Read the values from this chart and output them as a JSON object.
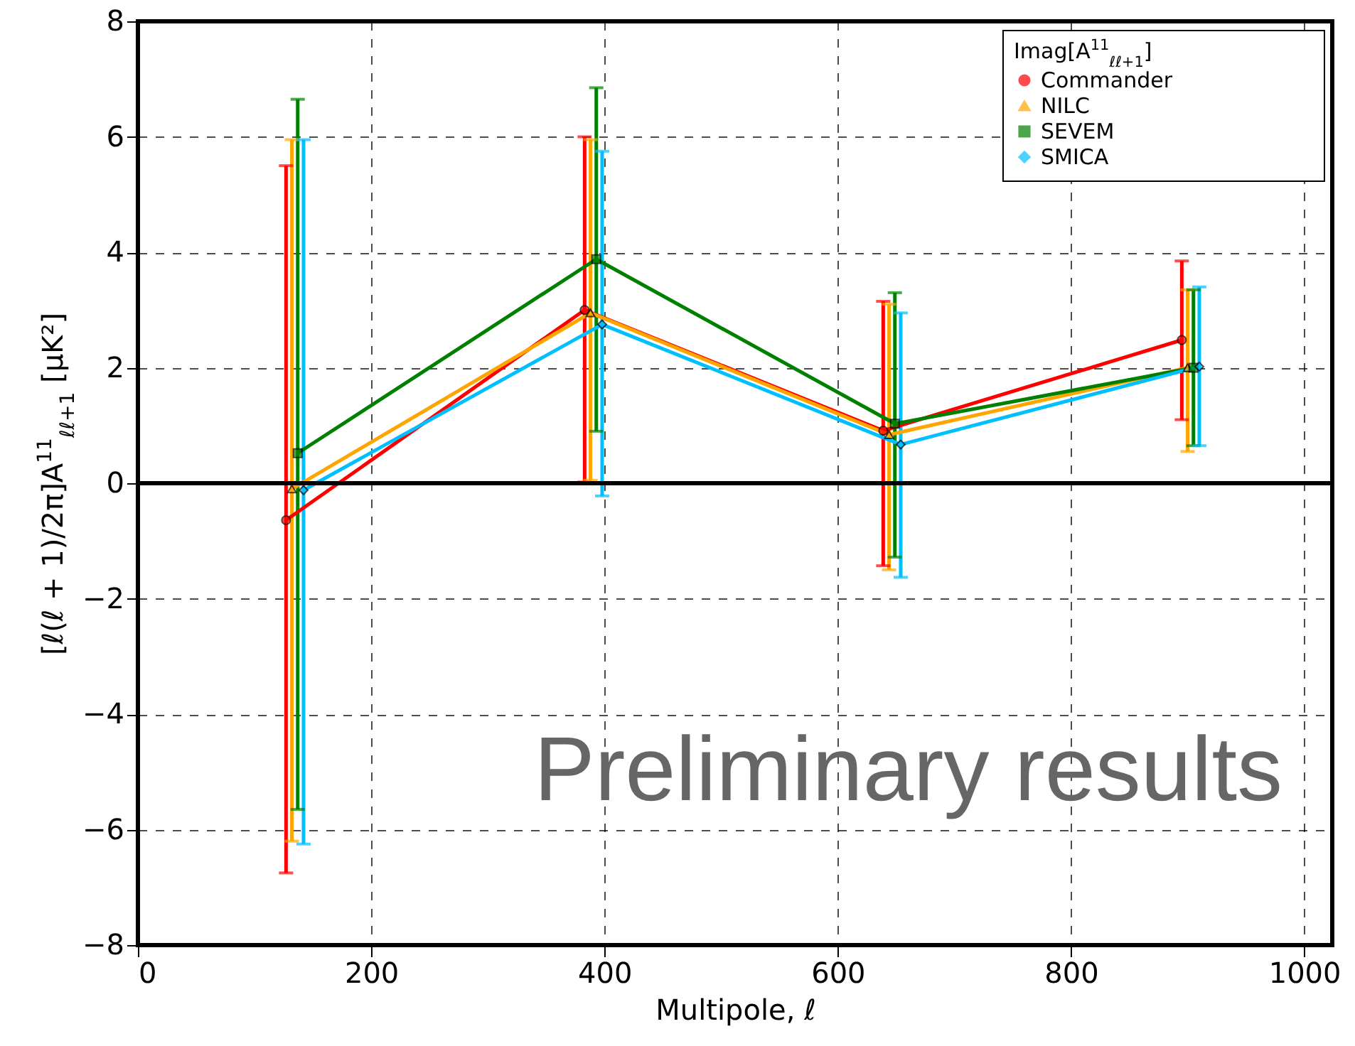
{
  "chart_data": {
    "type": "line",
    "xlabel": "Multipole, ℓ",
    "ylabel": "[ℓ(ℓ + 1)/2π]A$^{11}$$_{ℓℓ+1}$ [μK²]",
    "legend_title": "Imag[A$^{11}$$_{ℓℓ+1}$]",
    "xlim": [
      0,
      1024
    ],
    "xticks": [
      0,
      200,
      400,
      600,
      800,
      1000
    ],
    "ylim": [
      -8,
      8
    ],
    "yticks": [
      -8,
      -6,
      -4,
      -2,
      0,
      2,
      4,
      6,
      8
    ],
    "grid": true,
    "legend": "top right",
    "line_style": "solid",
    "ref_lines": [
      {
        "axis": "y",
        "value": 0,
        "color": "#000000"
      }
    ],
    "annotations": [
      "Preliminary results"
    ],
    "series": [
      {
        "name": "Commander",
        "color": "#ff0000",
        "marker": "circle",
        "x": [
          127,
          383,
          639,
          895
        ],
        "values": [
          -0.64,
          3.0,
          0.91,
          2.48
        ],
        "errors": [
          [
            -6.75,
            5.5
          ],
          [
            0.02,
            6.0
          ],
          [
            -1.43,
            3.15
          ],
          [
            1.1,
            3.85
          ]
        ]
      },
      {
        "name": "NILC",
        "color": "#ffa500",
        "marker": "triangle",
        "x": [
          132,
          388,
          644,
          900
        ],
        "values": [
          -0.1,
          2.95,
          0.84,
          2.0
        ],
        "errors": [
          [
            -6.2,
            5.95
          ],
          [
            0.05,
            5.95
          ],
          [
            -1.5,
            3.1
          ],
          [
            0.55,
            3.35
          ]
        ]
      },
      {
        "name": "SEVEM",
        "color": "#008000",
        "marker": "square",
        "x": [
          137,
          393,
          649,
          905
        ],
        "values": [
          0.52,
          3.88,
          1.03,
          2.0
        ],
        "errors": [
          [
            -5.65,
            6.65
          ],
          [
            0.9,
            6.85
          ],
          [
            -1.28,
            3.3
          ],
          [
            0.65,
            3.35
          ]
        ]
      },
      {
        "name": "SMICA",
        "color": "#00bfff",
        "marker": "diamond",
        "x": [
          142,
          398,
          654,
          910
        ],
        "values": [
          -0.12,
          2.75,
          0.67,
          2.02
        ],
        "errors": [
          [
            -6.25,
            5.95
          ],
          [
            -0.22,
            5.75
          ],
          [
            -1.63,
            2.95
          ],
          [
            0.65,
            3.4
          ]
        ]
      }
    ]
  }
}
